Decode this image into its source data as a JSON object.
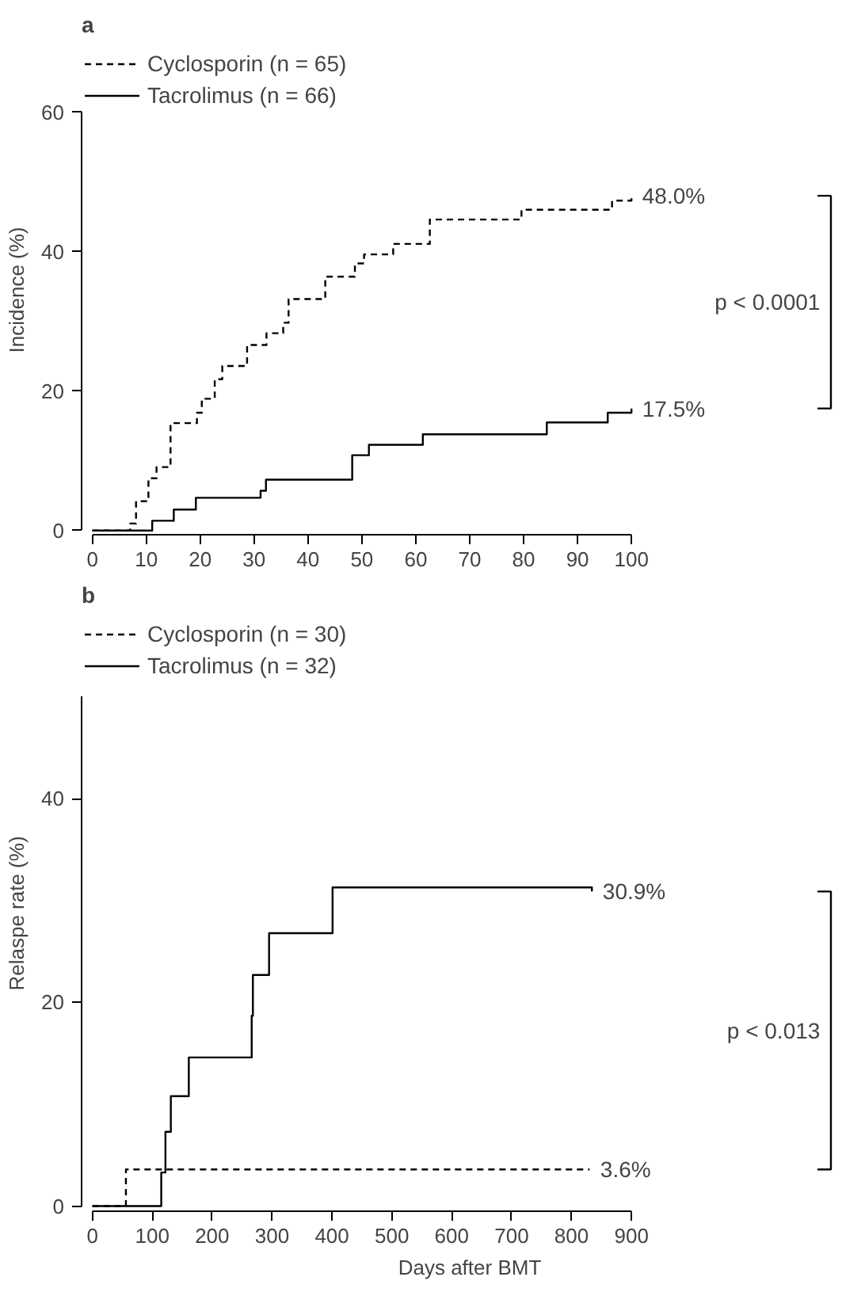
{
  "chart_data": [
    {
      "type": "step",
      "title": "a",
      "ylabel": "Incidence (%)",
      "xlim": [
        0,
        100
      ],
      "xticks": [
        0,
        10,
        20,
        30,
        40,
        50,
        60,
        70,
        80,
        90,
        100
      ],
      "ylim": [
        0,
        60
      ],
      "yticks": [
        0,
        20,
        40,
        60
      ],
      "grid": false,
      "legend": "top left",
      "marker": "none",
      "series": [
        {
          "name": "Cyclosporin (n = 65)",
          "color": "#000000",
          "line_style": "dashed",
          "x": [
            0,
            7,
            8.1,
            10.4,
            11.9,
            14.5,
            19.4,
            20.3,
            22.7,
            24.1,
            28.7,
            32.3,
            35.4,
            36.4,
            43.2,
            48.7,
            50.4,
            55.8,
            62.6,
            79.6,
            96.4,
            100
          ],
          "values": [
            0,
            1.0,
            4.2,
            7.5,
            9.1,
            15.4,
            16.9,
            18.9,
            21.7,
            23.6,
            26.6,
            28.3,
            29.8,
            33.2,
            36.4,
            38.3,
            39.6,
            41.1,
            44.6,
            46.0,
            47.3,
            48.0
          ]
        },
        {
          "name": "Tacrolimus (n = 66)",
          "color": "#000000",
          "line_style": "solid",
          "x": [
            0,
            11.1,
            15.1,
            19.2,
            31.2,
            32.2,
            48.2,
            51.3,
            61.3,
            84.3,
            95.6,
            100
          ],
          "values": [
            0,
            1.4,
            3.0,
            4.7,
            5.7,
            7.3,
            10.8,
            12.3,
            13.8,
            15.5,
            16.9,
            17.5
          ]
        }
      ],
      "annotations": [
        {
          "text": "48.0%",
          "x": 100,
          "y": 48.0
        },
        {
          "text": "17.5%",
          "x": 100,
          "y": 17.5
        },
        "p < 0.0001"
      ]
    },
    {
      "type": "step",
      "title": "b",
      "xlabel": "Days after BMT",
      "ylabel": "Relaspe rate (%)",
      "xlim": [
        0,
        900
      ],
      "xticks": [
        0,
        100,
        200,
        300,
        400,
        500,
        600,
        700,
        800,
        900
      ],
      "ylim": [
        0,
        50
      ],
      "yticks": [
        0,
        20,
        40
      ],
      "grid": false,
      "legend": "top left",
      "marker": "none",
      "series": [
        {
          "name": "Cyclosporin (n = 30)",
          "color": "#000000",
          "line_style": "dashed",
          "x": [
            0,
            56,
            830
          ],
          "values": [
            0,
            3.6,
            3.6
          ]
        },
        {
          "name": "Tacrolimus (n = 32)",
          "color": "#000000",
          "line_style": "solid",
          "x": [
            0,
            115,
            122,
            131,
            161,
            266,
            268,
            295,
            401,
            834
          ],
          "values": [
            0,
            3.3,
            7.3,
            10.8,
            14.6,
            18.7,
            22.7,
            26.8,
            31.3,
            30.9
          ]
        }
      ],
      "annotations": [
        {
          "text": "30.9%",
          "x": 834,
          "y": 30.9
        },
        {
          "text": "3.6%",
          "x": 830,
          "y": 3.6
        },
        "p < 0.013"
      ]
    }
  ]
}
